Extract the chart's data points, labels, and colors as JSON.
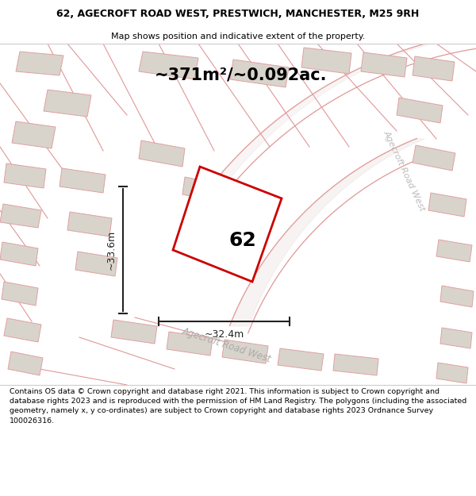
{
  "title_line1": "62, AGECROFT ROAD WEST, PRESTWICH, MANCHESTER, M25 9RH",
  "title_line2": "Map shows position and indicative extent of the property.",
  "area_text": "~371m²/~0.092ac.",
  "label_62": "62",
  "dim_width": "~32.4m",
  "dim_height": "~33.6m",
  "road_label": "Agecroft Road West",
  "road_label2": "Agecroft Road West",
  "footer": "Contains OS data © Crown copyright and database right 2021. This information is subject to Crown copyright and database rights 2023 and is reproduced with the permission of HM Land Registry. The polygons (including the associated geometry, namely x, y co-ordinates) are subject to Crown copyright and database rights 2023 Ordnance Survey 100026316.",
  "map_bg": "#f8f5f0",
  "property_fill": "#ffffff",
  "property_edge": "#cc0000",
  "building_fill": "#d8d4cc",
  "building_edge_color": "#e0a0a0",
  "dim_color": "#222222",
  "road_line_color": "#e09898",
  "road_fill_color": "#f0e8e8",
  "title_bg": "#ffffff",
  "footer_bg": "#ffffff",
  "sep_color": "#cccccc"
}
